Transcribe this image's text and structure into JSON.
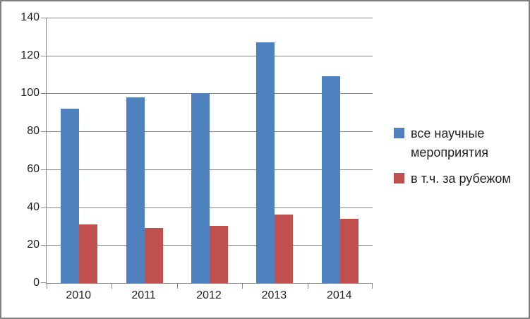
{
  "chart_data": {
    "type": "bar",
    "title": "",
    "xlabel": "",
    "ylabel": "",
    "categories": [
      "2010",
      "2011",
      "2012",
      "2013",
      "2014"
    ],
    "series": [
      {
        "name": "все научные мероприятия",
        "color": "#4e81bd",
        "values": [
          92,
          98,
          100,
          127,
          109
        ]
      },
      {
        "name": "в т.ч. за рубежом",
        "color": "#c0504d",
        "values": [
          31,
          29,
          30,
          36,
          34
        ]
      }
    ],
    "ylim": [
      0,
      140
    ],
    "yticks": [
      0,
      20,
      40,
      60,
      80,
      100,
      120,
      140
    ],
    "grid": true,
    "legend_position": "right"
  },
  "colors": {
    "gridline": "#878787",
    "axis": "#878787",
    "text": "#1f1f1f",
    "frame_border": "#7f7f7f",
    "background": "#ffffff"
  }
}
